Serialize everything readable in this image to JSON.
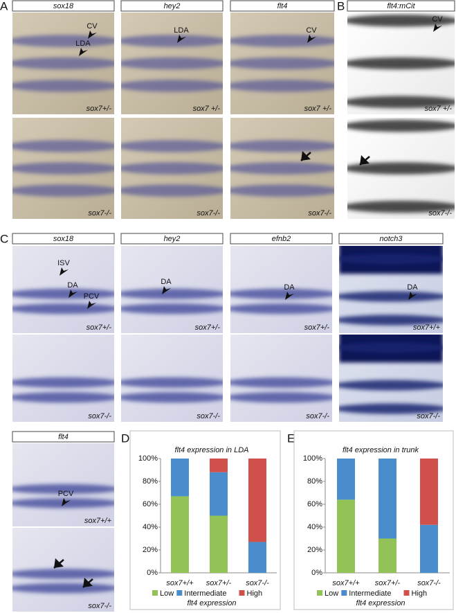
{
  "letters": [
    "A",
    "B",
    "C",
    "D",
    "E"
  ],
  "columns": [
    {
      "header": "sox18",
      "top": {
        "notes": [
          "CV",
          "LDA"
        ],
        "genotype": "sox7+/-"
      },
      "bottom": {
        "genotype": "sox7-/-"
      }
    },
    {
      "header": "hey2",
      "top": {
        "notes": [
          "LDA"
        ],
        "genotype": "sox7 +/-"
      },
      "bottom": {
        "genotype": "sox7-/-"
      }
    },
    {
      "header": "flt4",
      "top": {
        "notes": [
          "CV"
        ],
        "genotype": "sox7 +/-"
      },
      "bottom": {
        "genotype": "sox7-/-"
      }
    },
    {
      "header": "flt4:mCit",
      "top": {
        "notes": [
          "CV"
        ],
        "genotype": "sox7 +/-"
      },
      "bottom": {
        "genotype": "sox7-/-"
      }
    },
    {
      "header": "sox18",
      "top": {
        "notes": [
          "ISV",
          "DA",
          "PCV"
        ],
        "genotype": "sox7+/-"
      },
      "bottom": {
        "genotype": "sox7-/-"
      }
    },
    {
      "header": "hey2",
      "top": {
        "notes": [
          "DA"
        ],
        "genotype": "sox7+/-"
      },
      "bottom": {
        "genotype": "sox7-/-"
      }
    },
    {
      "header": "efnb2",
      "top": {
        "notes": [
          "DA"
        ],
        "genotype": "sox7+/-"
      },
      "bottom": {
        "genotype": "sox7-/-"
      }
    },
    {
      "header": "notch3",
      "top": {
        "notes": [
          "DA"
        ],
        "genotype": "sox7+/+"
      },
      "bottom": {
        "genotype": "sox7-/-"
      }
    },
    {
      "header": "flt4",
      "top": {
        "notes": [
          "PCV"
        ],
        "genotype": "sox7+/+"
      },
      "bottom": {
        "genotype": "sox7-/-"
      }
    }
  ],
  "chart_data": [
    {
      "type": "bar",
      "stacked": true,
      "title": "flt4 expression in LDA",
      "x_label": "flt4 expression",
      "categories": [
        "sox7+/+",
        "sox7+/-",
        "sox7-/-"
      ],
      "series": [
        {
          "name": "Low",
          "color": "#93c356",
          "values": [
            67,
            50,
            0
          ]
        },
        {
          "name": "Intermediate",
          "color": "#4a8dcc",
          "values": [
            33,
            38,
            27
          ]
        },
        {
          "name": "High",
          "color": "#d0504c",
          "values": [
            0,
            12,
            73
          ]
        }
      ],
      "ylim": [
        0,
        100
      ],
      "yticks": [
        {
          "value": 0,
          "label": "0%"
        },
        {
          "value": 20,
          "label": "20%"
        },
        {
          "value": 40,
          "label": "40%"
        },
        {
          "value": 60,
          "label": "60%"
        },
        {
          "value": 80,
          "label": "80%"
        },
        {
          "value": 100,
          "label": "100%"
        }
      ]
    },
    {
      "type": "bar",
      "stacked": true,
      "title": "flt4 expression in trunk",
      "x_label": "flt4 expression",
      "categories": [
        "sox7+/+",
        "sox7+/-",
        "sox7-/-"
      ],
      "series": [
        {
          "name": "Low",
          "color": "#93c356",
          "values": [
            64,
            30,
            0
          ]
        },
        {
          "name": "Intermediate",
          "color": "#4a8dcc",
          "values": [
            36,
            70,
            42
          ]
        },
        {
          "name": "High",
          "color": "#d0504c",
          "values": [
            0,
            0,
            58
          ]
        }
      ],
      "ylim": [
        0,
        100
      ],
      "yticks": [
        {
          "value": 0,
          "label": "0%"
        },
        {
          "value": 20,
          "label": "20%"
        },
        {
          "value": 40,
          "label": "40%"
        },
        {
          "value": 60,
          "label": "60%"
        },
        {
          "value": 80,
          "label": "80%"
        },
        {
          "value": 100,
          "label": "100%"
        }
      ]
    }
  ]
}
